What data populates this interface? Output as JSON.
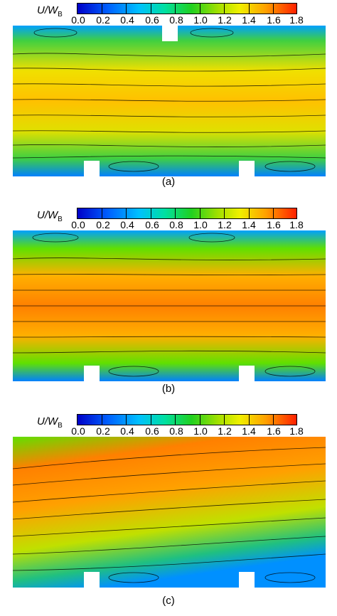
{
  "colorbar": {
    "label_main": "U/W",
    "label_sub": "B",
    "ticks": [
      "0.0",
      "0.2",
      "0.4",
      "0.6",
      "0.8",
      "1.0",
      "1.2",
      "1.4",
      "1.6",
      "1.8"
    ]
  },
  "panels": [
    {
      "caption": "(a)"
    },
    {
      "caption": "(b)"
    },
    {
      "caption": "(c)"
    }
  ]
}
